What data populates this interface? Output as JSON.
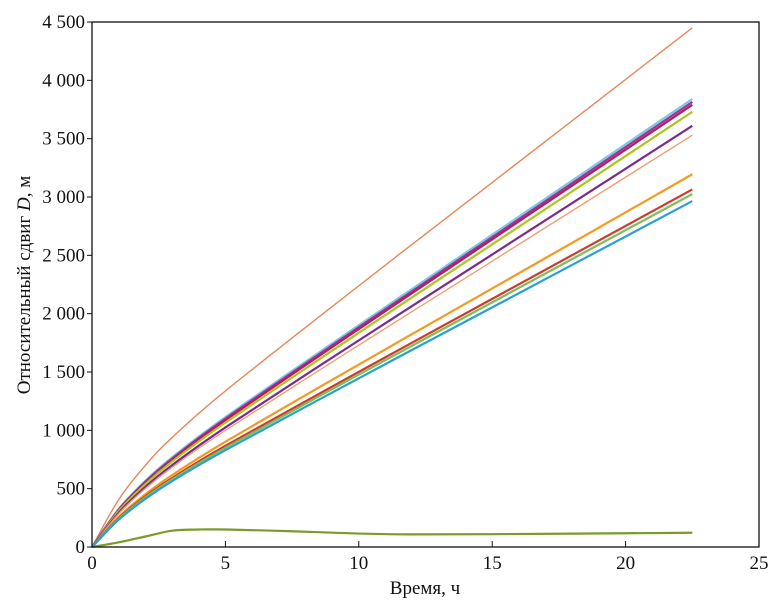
{
  "chart_data": {
    "type": "line",
    "title": "",
    "xlabel": "Время, ч",
    "ylabel": {
      "prefix": "Относительный сдвиг ",
      "symbol": "D",
      "suffix": ", м"
    },
    "xlim": [
      0,
      25
    ],
    "ylim": [
      0,
      4500
    ],
    "xticks": [
      0,
      5,
      10,
      15,
      20,
      25
    ],
    "xtick_labels": [
      "0",
      "5",
      "10",
      "15",
      "20",
      "25"
    ],
    "yticks": [
      0,
      500,
      1000,
      1500,
      2000,
      2500,
      3000,
      3500,
      4000,
      4500
    ],
    "ytick_labels": [
      "0",
      "500",
      "1 000",
      "1 500",
      "2 000",
      "2 500",
      "3 000",
      "3 500",
      "4 000",
      "4 500"
    ],
    "grid": false,
    "legend": "none",
    "x": [
      0,
      1,
      2,
      3,
      5,
      10,
      15,
      22.5
    ],
    "series": [
      {
        "color": "#e8875a",
        "values": [
          0,
          406,
          700,
          938,
          1338,
          2239,
          3124,
          4450
        ]
      },
      {
        "color": "#7ec8e3",
        "values": [
          0,
          325,
          568,
          768,
          1113,
          1901,
          2677,
          3840
        ]
      },
      {
        "color": "#8e3c9e",
        "values": [
          0,
          320,
          559,
          757,
          1100,
          1884,
          2656,
          3815
        ]
      },
      {
        "color": "#c2185b",
        "values": [
          0,
          315,
          551,
          746,
          1087,
          1868,
          2637,
          3790
        ]
      },
      {
        "color": "#a8c820",
        "values": [
          0,
          308,
          539,
          732,
          1066,
          1836,
          2594,
          3730
        ]
      },
      {
        "color": "#7b2a8e",
        "values": [
          0,
          293,
          515,
          701,
          1025,
          1771,
          2507,
          3610
        ]
      },
      {
        "color": "#f0a070",
        "values": [
          0,
          285,
          501,
          683,
          1000,
          1730,
          2450,
          3530
        ]
      },
      {
        "color": "#f59a20",
        "values": [
          0,
          257,
          452,
          616,
          903,
          1564,
          2216,
          3195
        ]
      },
      {
        "color": "#d03a2a",
        "values": [
          0,
          247,
          434,
          591,
          867,
          1501,
          2127,
          3065
        ]
      },
      {
        "color": "#7cbf5a",
        "values": [
          0,
          241,
          425,
          579,
          850,
          1478,
          2097,
          3025
        ]
      },
      {
        "color": "#2a9fd6",
        "values": [
          0,
          234,
          412,
          564,
          830,
          1446,
          2054,
          2965
        ]
      },
      {
        "color": "#7a9a2a",
        "x": [
          0,
          1,
          2,
          3,
          4,
          5,
          7.5,
          10,
          12,
          15,
          20,
          22.5
        ],
        "values": [
          0,
          40,
          90,
          140,
          150,
          150,
          135,
          115,
          108,
          110,
          118,
          122
        ]
      }
    ]
  }
}
